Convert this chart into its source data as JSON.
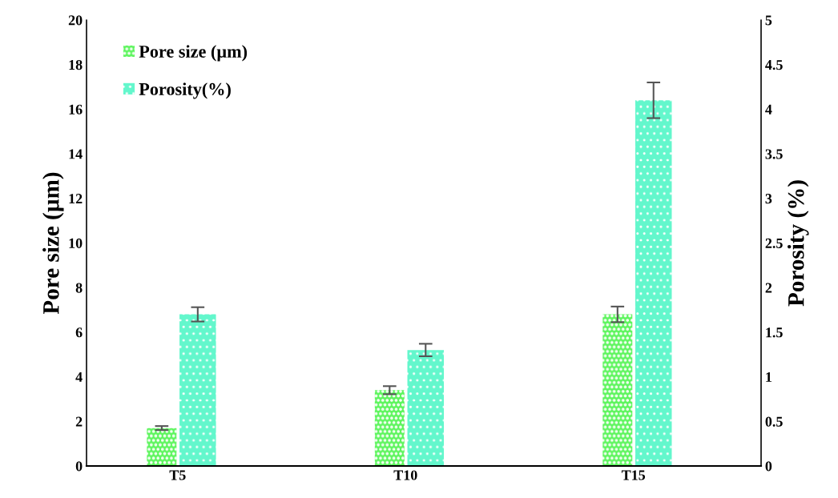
{
  "chart_data": {
    "type": "bar",
    "xlabel": null,
    "ylabel": "Pore size (µm)",
    "y2label": "Porosity (%)",
    "categories": [
      "T5",
      "T10",
      "T15"
    ],
    "series": [
      {
        "name": "Pore size (µm)",
        "color": "#5ef55e",
        "values": [
          1.7,
          3.4,
          6.8
        ],
        "errors": [
          0.09,
          0.18,
          0.35
        ]
      },
      {
        "name": "Porosity(%)",
        "color": "#63f7cc",
        "values": [
          1.7,
          1.3,
          4.1
        ],
        "errors": [
          0.08,
          0.07,
          0.2
        ],
        "axis": "y2"
      }
    ],
    "ylim": [
      0,
      20
    ],
    "yticks": [
      0,
      2,
      4,
      6,
      8,
      10,
      12,
      14,
      16,
      18,
      20
    ],
    "y2lim": [
      0,
      5
    ],
    "y2ticks": [
      0,
      0.5,
      1,
      1.5,
      2,
      2.5,
      3,
      3.5,
      4,
      4.5,
      5
    ],
    "grid": false,
    "legend": "top left"
  }
}
